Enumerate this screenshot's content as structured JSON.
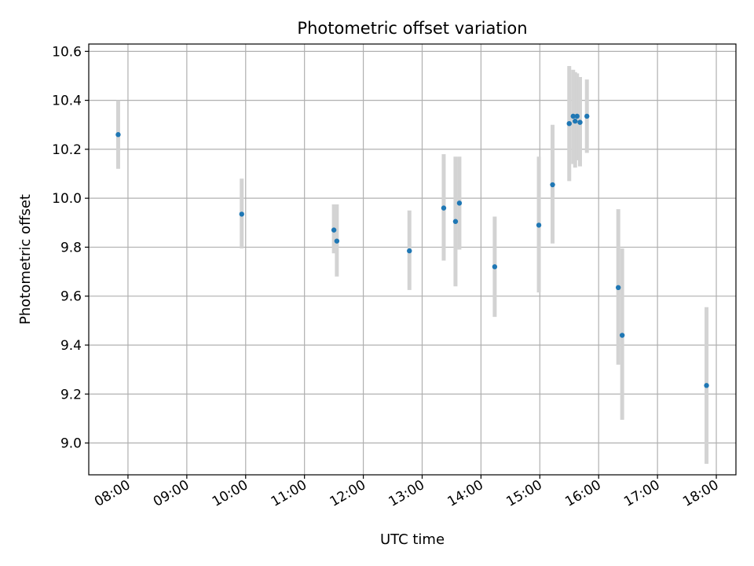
{
  "chart_data": {
    "type": "scatter",
    "title": "Photometric offset variation",
    "xlabel": "UTC time",
    "ylabel": "Photometric offset",
    "x_is_time": true,
    "xlim": [
      "07:20",
      "18:20"
    ],
    "ylim": [
      8.87,
      10.63
    ],
    "x_ticks": [
      "08:00",
      "09:00",
      "10:00",
      "11:00",
      "12:00",
      "13:00",
      "14:00",
      "15:00",
      "16:00",
      "17:00",
      "18:00"
    ],
    "y_ticks": [
      "9.0",
      "9.2",
      "9.4",
      "9.6",
      "9.8",
      "10.0",
      "10.2",
      "10.4",
      "10.6"
    ],
    "grid": true,
    "colors": {
      "points": "#1f77b4",
      "errorbars": "#d3d3d3",
      "grid": "#b0b0b0"
    },
    "points": [
      {
        "x": "07:50",
        "y": 10.26,
        "ylow": 10.12,
        "yhigh": 10.4
      },
      {
        "x": "09:56",
        "y": 9.935,
        "ylow": 9.795,
        "yhigh": 10.08
      },
      {
        "x": "11:30",
        "y": 9.87,
        "ylow": 9.775,
        "yhigh": 9.975
      },
      {
        "x": "11:33",
        "y": 9.825,
        "ylow": 9.68,
        "yhigh": 9.975
      },
      {
        "x": "12:47",
        "y": 9.785,
        "ylow": 9.625,
        "yhigh": 9.95
      },
      {
        "x": "13:22",
        "y": 9.96,
        "ylow": 9.745,
        "yhigh": 10.18
      },
      {
        "x": "13:34",
        "y": 9.905,
        "ylow": 9.64,
        "yhigh": 10.17
      },
      {
        "x": "13:38",
        "y": 9.98,
        "ylow": 9.79,
        "yhigh": 10.17
      },
      {
        "x": "14:14",
        "y": 9.72,
        "ylow": 9.515,
        "yhigh": 9.925
      },
      {
        "x": "14:59",
        "y": 9.89,
        "ylow": 9.615,
        "yhigh": 10.17
      },
      {
        "x": "15:13",
        "y": 10.055,
        "ylow": 9.815,
        "yhigh": 10.3
      },
      {
        "x": "15:30",
        "y": 10.305,
        "ylow": 10.07,
        "yhigh": 10.54
      },
      {
        "x": "15:34",
        "y": 10.335,
        "ylow": 10.14,
        "yhigh": 10.525
      },
      {
        "x": "15:36",
        "y": 10.315,
        "ylow": 10.125,
        "yhigh": 10.515
      },
      {
        "x": "15:38",
        "y": 10.335,
        "ylow": 10.155,
        "yhigh": 10.51
      },
      {
        "x": "15:41",
        "y": 10.31,
        "ylow": 10.13,
        "yhigh": 10.495
      },
      {
        "x": "15:48",
        "y": 10.335,
        "ylow": 10.185,
        "yhigh": 10.485
      },
      {
        "x": "16:20",
        "y": 9.635,
        "ylow": 9.32,
        "yhigh": 9.955
      },
      {
        "x": "16:24",
        "y": 9.44,
        "ylow": 9.095,
        "yhigh": 9.795
      },
      {
        "x": "17:50",
        "y": 9.235,
        "ylow": 8.915,
        "yhigh": 9.555
      }
    ]
  }
}
